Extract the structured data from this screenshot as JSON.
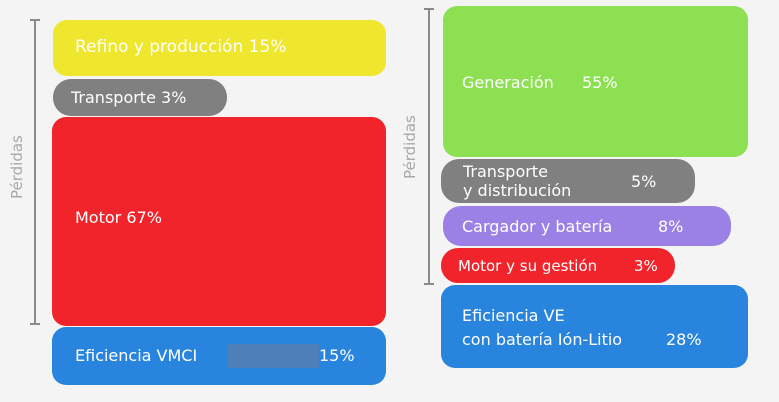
{
  "loss_label": "Pérdidas",
  "left": {
    "title": "",
    "items": [
      {
        "label": "Refino y producción",
        "value": "15%",
        "color": "#efe62e"
      },
      {
        "label": "Transporte",
        "value": "3%",
        "color": "#808080"
      },
      {
        "label": "Motor",
        "value": "67%",
        "color": "#f2242b"
      },
      {
        "label": "Eficiencia VMCI",
        "value": "15%",
        "color": "#2984de"
      }
    ],
    "redaction_color": "#4f7fb8"
  },
  "right": {
    "items": [
      {
        "label": "Generación",
        "value": "55%",
        "color": "#8ce051"
      },
      {
        "label_line1": "Transporte",
        "label_line2": "y distribución",
        "value": "5%",
        "color": "#808080"
      },
      {
        "label": "Cargador y batería",
        "value": "8%",
        "color": "#9b80e6"
      },
      {
        "label": "Motor y su gestión",
        "value": "3%",
        "color": "#f2242b"
      },
      {
        "label_line1": "Eficiencia VE",
        "label_line2": "con batería Ión-Litio",
        "value": "28%",
        "color": "#2984de"
      }
    ]
  }
}
